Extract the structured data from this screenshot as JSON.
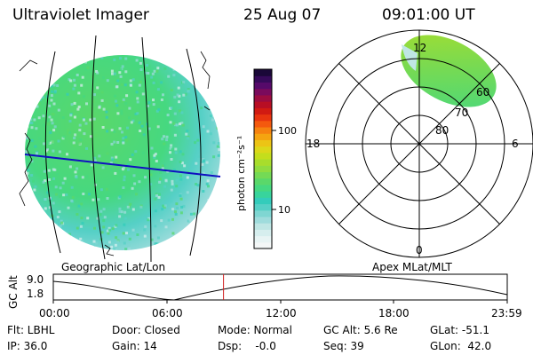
{
  "header": {
    "instrument": "Ultraviolet Imager",
    "date": "25 Aug 07",
    "time": "09:01:00 UT"
  },
  "colorbar": {
    "unit_label": "photon cm⁻²s⁻¹",
    "ticks": [
      "100",
      "10"
    ],
    "colors": [
      "#f4f7f7",
      "#e8f4f4",
      "#d6eeee",
      "#bfe6e4",
      "#9fdcdc",
      "#7fd6d2",
      "#55d0c6",
      "#33ccbb",
      "#38d49c",
      "#46d880",
      "#5ad86a",
      "#74da55",
      "#90dc40",
      "#a8dd2c",
      "#c4de1c",
      "#dcd81a",
      "#ecc415",
      "#f5a410",
      "#f6820f",
      "#f4590e",
      "#e8340f",
      "#d11a12",
      "#b80e24",
      "#9c0c40",
      "#7a0a5c",
      "#560a6a",
      "#360a5a",
      "#1a0838"
    ]
  },
  "left_panel": {
    "title": "Geographic Lat/Lon"
  },
  "right_panel": {
    "title": "Apex MLat/MLT",
    "mlt_labels": {
      "top": "12",
      "bottom": "0",
      "left": "18",
      "right": "6"
    },
    "mlat_labels": [
      "60",
      "70",
      "80"
    ]
  },
  "altitude_strip": {
    "ylabel": "GC Alt",
    "y_top": "9.0",
    "y_bottom": "1.8",
    "time_ticks": [
      "00:00",
      "06:00",
      "12:00",
      "18:00",
      "23:59"
    ],
    "current_time_fraction": 0.375
  },
  "status": {
    "row1": {
      "filter": "Flt: LBHL",
      "door": "Door: Closed",
      "mode": "Mode: Normal",
      "gc_alt": "GC Alt: 5.6 Re",
      "glat": "GLat: -51.1"
    },
    "row2": {
      "ip": "IP: 36.0",
      "gain": "Gain: 14",
      "dsp": "Dsp:    -0.0",
      "seq": "Seq: 39",
      "glon": "GLon:  42.0"
    }
  }
}
